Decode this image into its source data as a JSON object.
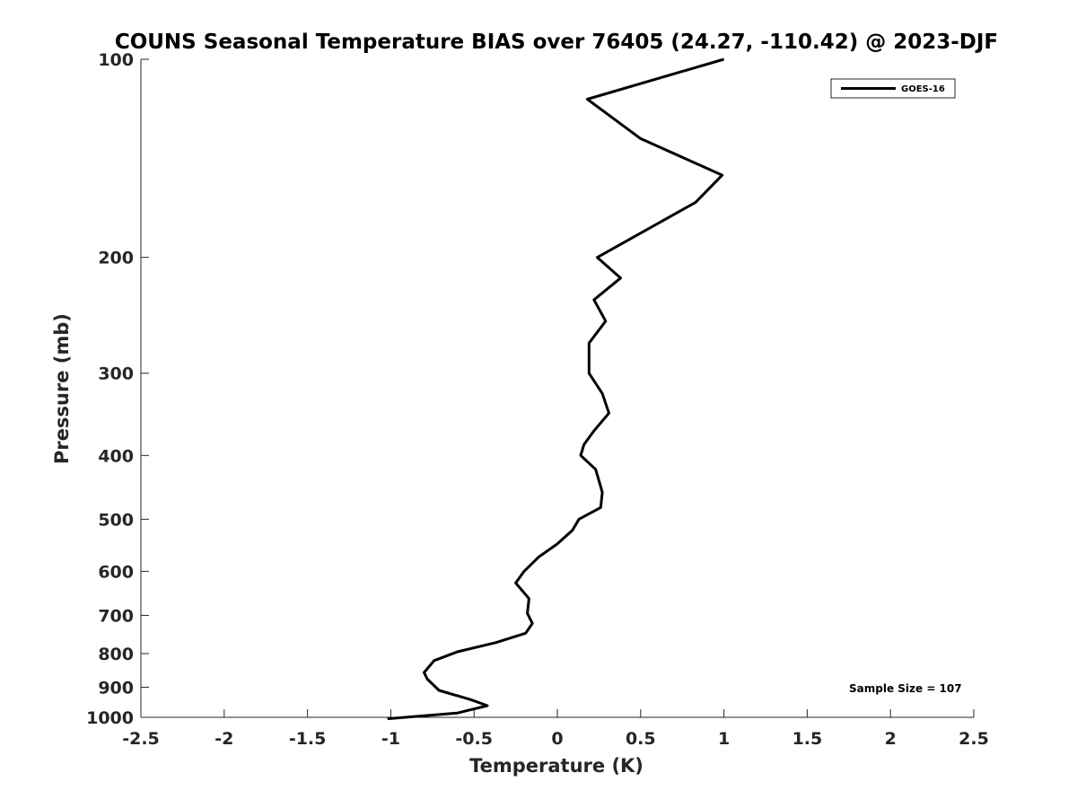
{
  "chart_data": {
    "type": "line",
    "title": "COUNS Seasonal Temperature BIAS over 76405 (24.27, -110.42) @ 2023-DJF",
    "xlabel": "Temperature (K)",
    "ylabel": "Pressure (mb)",
    "xlim": [
      -2.5,
      2.5
    ],
    "ylim": [
      100,
      1000
    ],
    "y_scale": "log",
    "y_reversed": true,
    "x_ticks": [
      "-2.5",
      "-2",
      "-1.5",
      "-1",
      "-0.5",
      "0",
      "0.5",
      "1",
      "1.5",
      "2",
      "2.5"
    ],
    "y_ticks": [
      "100",
      "200",
      "300",
      "400",
      "500",
      "600",
      "700",
      "800",
      "900",
      "1000"
    ],
    "grid": false,
    "legend_position": "top-right",
    "annotation": "Sample Size = 107",
    "series": [
      {
        "name": "GOES-16",
        "color": "#000000",
        "x": [
          1.0,
          0.18,
          0.5,
          0.99,
          0.83,
          0.24,
          0.38,
          0.22,
          0.29,
          0.19,
          0.19,
          0.27,
          0.31,
          0.22,
          0.16,
          0.14,
          0.23,
          0.27,
          0.26,
          0.13,
          0.09,
          0.0,
          -0.11,
          -0.2,
          -0.25,
          -0.17,
          -0.18,
          -0.15,
          -0.19,
          -0.37,
          -0.6,
          -0.74,
          -0.8,
          -0.78,
          -0.71,
          -0.52,
          -0.42,
          -0.6,
          -1.02
        ],
        "y": [
          100,
          115,
          132,
          150,
          165,
          200,
          215,
          232,
          250,
          270,
          300,
          322,
          345,
          367,
          385,
          400,
          420,
          455,
          480,
          500,
          520,
          545,
          570,
          600,
          625,
          660,
          695,
          720,
          745,
          770,
          795,
          820,
          855,
          875,
          910,
          940,
          960,
          985,
          1005
        ]
      }
    ]
  }
}
